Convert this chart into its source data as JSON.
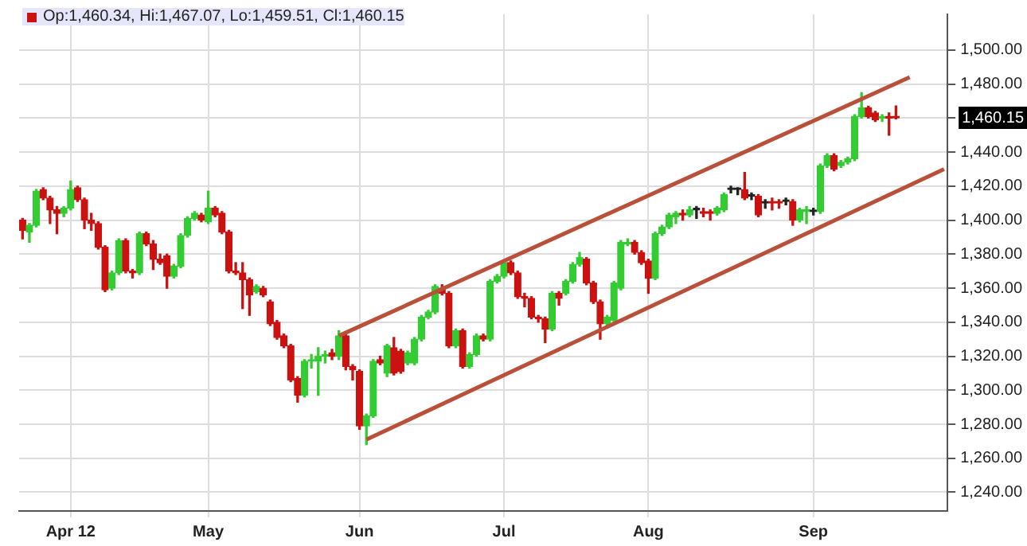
{
  "chart_data": {
    "type": "candlestick",
    "title": "Op:1,460.34, Hi:1,467.07, Lo:1,459.51, Cl:1,460.15",
    "categories": [
      null,
      null,
      null,
      null,
      null,
      null,
      null,
      "Apr 12",
      null,
      null,
      null,
      null,
      null,
      null,
      null,
      null,
      null,
      null,
      null,
      null,
      null,
      null,
      null,
      null,
      null,
      null,
      null,
      "May",
      null,
      null,
      null,
      null,
      null,
      null,
      null,
      null,
      null,
      null,
      null,
      null,
      null,
      null,
      null,
      null,
      null,
      null,
      null,
      null,
      null,
      "Jun",
      null,
      null,
      null,
      null,
      null,
      null,
      null,
      null,
      null,
      null,
      null,
      null,
      null,
      null,
      null,
      null,
      null,
      null,
      null,
      null,
      "Jul",
      null,
      null,
      null,
      null,
      null,
      null,
      null,
      null,
      null,
      null,
      null,
      null,
      null,
      null,
      null,
      null,
      null,
      null,
      null,
      null,
      "Aug",
      null,
      null,
      null,
      null,
      null,
      null,
      null,
      null,
      null,
      null,
      null,
      null,
      null,
      null,
      null,
      null,
      null,
      null,
      null,
      null,
      null,
      null,
      null,
      "Sep",
      null,
      null,
      null,
      null,
      null,
      null,
      null,
      null,
      null,
      null,
      null,
      null,
      null,
      null,
      null,
      null,
      null,
      null,
      null
    ],
    "series": [
      {
        "type": "candlestick",
        "ohlc": [
          [
            1400,
            1401,
            1389,
            1394
          ],
          [
            1393,
            1398,
            1387,
            1397
          ],
          [
            1397,
            1418,
            1396,
            1417
          ],
          [
            1418,
            1419,
            1412,
            1413
          ],
          [
            1413,
            1414,
            1398,
            1406
          ],
          [
            1406,
            1408,
            1392,
            1404
          ],
          [
            1404,
            1408,
            1402,
            1407
          ],
          [
            1407,
            1423,
            1406,
            1418
          ],
          [
            1419,
            1420,
            1411,
            1412
          ],
          [
            1412,
            1413,
            1395,
            1400
          ],
          [
            1400,
            1404,
            1394,
            1398
          ],
          [
            1398,
            1399,
            1383,
            1384
          ],
          [
            1384,
            1385,
            1358,
            1359
          ],
          [
            1360,
            1370,
            1359,
            1369
          ],
          [
            1369,
            1389,
            1368,
            1388
          ],
          [
            1388,
            1389,
            1369,
            1370
          ],
          [
            1370,
            1371,
            1366,
            1369
          ],
          [
            1369,
            1393,
            1368,
            1392
          ],
          [
            1392,
            1393,
            1385,
            1386
          ],
          [
            1386,
            1388,
            1371,
            1377
          ],
          [
            1377,
            1380,
            1374,
            1375
          ],
          [
            1379,
            1380,
            1360,
            1367
          ],
          [
            1367,
            1374,
            1366,
            1373
          ],
          [
            1373,
            1392,
            1372,
            1391
          ],
          [
            1391,
            1402,
            1390,
            1401
          ],
          [
            1401,
            1405,
            1400,
            1404
          ],
          [
            1403,
            1404,
            1399,
            1400
          ],
          [
            1399,
            1417,
            1398,
            1407
          ],
          [
            1407,
            1408,
            1402,
            1403
          ],
          [
            1404,
            1405,
            1392,
            1393
          ],
          [
            1393,
            1394,
            1369,
            1370
          ],
          [
            1370,
            1375,
            1368,
            1369
          ],
          [
            1369,
            1375,
            1348,
            1365
          ],
          [
            1365,
            1366,
            1344,
            1356
          ],
          [
            1358,
            1362,
            1357,
            1361
          ],
          [
            1360,
            1361,
            1355,
            1356
          ],
          [
            1352,
            1353,
            1338,
            1339
          ],
          [
            1340,
            1341,
            1330,
            1331
          ],
          [
            1332,
            1333,
            1325,
            1326
          ],
          [
            1326,
            1327,
            1305,
            1306
          ],
          [
            1307,
            1308,
            1293,
            1297
          ],
          [
            1297,
            1318,
            1296,
            1317
          ],
          [
            1317,
            1321,
            1313,
            1318
          ],
          [
            1317,
            1325,
            1297,
            1320
          ],
          [
            1320,
            1323,
            1316,
            1321
          ],
          [
            1322,
            1324,
            1318,
            1320
          ],
          [
            1320,
            1335,
            1318,
            1332
          ],
          [
            1332,
            1333,
            1312,
            1314
          ],
          [
            1314,
            1315,
            1306,
            1312
          ],
          [
            1311,
            1312,
            1277,
            1279
          ],
          [
            1279,
            1286,
            1268,
            1285
          ],
          [
            1285,
            1318,
            1284,
            1317
          ],
          [
            1318,
            1320,
            1315,
            1316
          ],
          [
            1310,
            1327,
            1308,
            1326
          ],
          [
            1325,
            1331,
            1309,
            1310
          ],
          [
            1323,
            1324,
            1310,
            1311
          ],
          [
            1316,
            1323,
            1315,
            1322
          ],
          [
            1316,
            1331,
            1315,
            1330
          ],
          [
            1330,
            1344,
            1329,
            1343
          ],
          [
            1343,
            1347,
            1342,
            1346
          ],
          [
            1346,
            1362,
            1345,
            1361
          ],
          [
            1360,
            1362,
            1356,
            1357
          ],
          [
            1357,
            1358,
            1325,
            1326
          ],
          [
            1326,
            1336,
            1325,
            1335
          ],
          [
            1335,
            1336,
            1313,
            1314
          ],
          [
            1314,
            1322,
            1313,
            1321
          ],
          [
            1321,
            1333,
            1320,
            1332
          ],
          [
            1332,
            1333,
            1329,
            1330
          ],
          [
            1330,
            1365,
            1329,
            1364
          ],
          [
            1364,
            1368,
            1363,
            1367
          ],
          [
            1367,
            1376,
            1366,
            1375
          ],
          [
            1375,
            1376,
            1368,
            1369
          ],
          [
            1369,
            1370,
            1354,
            1355
          ],
          [
            1355,
            1357,
            1349,
            1354
          ],
          [
            1354,
            1355,
            1342,
            1343
          ],
          [
            1343,
            1344,
            1340,
            1342
          ],
          [
            1342,
            1343,
            1328,
            1336
          ],
          [
            1336,
            1358,
            1335,
            1357
          ],
          [
            1357,
            1358,
            1350,
            1354
          ],
          [
            1357,
            1365,
            1356,
            1364
          ],
          [
            1364,
            1375,
            1363,
            1374
          ],
          [
            1374,
            1381,
            1373,
            1378
          ],
          [
            1377,
            1378,
            1362,
            1363
          ],
          [
            1363,
            1364,
            1351,
            1352
          ],
          [
            1352,
            1353,
            1330,
            1339
          ],
          [
            1339,
            1344,
            1337,
            1343
          ],
          [
            1341,
            1364,
            1340,
            1363
          ],
          [
            1360,
            1388,
            1359,
            1387
          ],
          [
            1386,
            1389,
            1385,
            1387
          ],
          [
            1387,
            1388,
            1380,
            1381
          ],
          [
            1381,
            1382,
            1374,
            1375
          ],
          [
            1376,
            1377,
            1357,
            1366
          ],
          [
            1366,
            1393,
            1365,
            1392
          ],
          [
            1392,
            1397,
            1391,
            1396
          ],
          [
            1396,
            1404,
            1395,
            1403
          ],
          [
            1402,
            1405,
            1398,
            1404
          ],
          [
            1404,
            1406,
            1400,
            1403
          ],
          [
            1403,
            1408,
            1402,
            1406
          ],
          [
            1406,
            1408,
            1401,
            1406
          ],
          [
            1405,
            1407,
            1402,
            1404
          ],
          [
            1405,
            1406,
            1400,
            1404
          ],
          [
            1404,
            1408,
            1403,
            1407
          ],
          [
            1406,
            1416,
            1405,
            1415
          ],
          [
            1418,
            1420,
            1416,
            1418
          ],
          [
            1418,
            1419,
            1415,
            1418
          ],
          [
            1418,
            1428,
            1412,
            1413
          ],
          [
            1414,
            1416,
            1412,
            1414
          ],
          [
            1414,
            1415,
            1402,
            1403
          ],
          [
            1410,
            1412,
            1407,
            1410
          ],
          [
            1411,
            1413,
            1406,
            1410
          ],
          [
            1411,
            1412,
            1407,
            1410
          ],
          [
            1411,
            1413,
            1409,
            1411
          ],
          [
            1411,
            1412,
            1397,
            1400
          ],
          [
            1400,
            1407,
            1399,
            1406
          ],
          [
            1405,
            1408,
            1398,
            1406
          ],
          [
            1405,
            1407,
            1403,
            1405
          ],
          [
            1405,
            1433,
            1404,
            1432
          ],
          [
            1432,
            1439,
            1431,
            1438
          ],
          [
            1438,
            1439,
            1429,
            1430
          ],
          [
            1432,
            1435,
            1431,
            1434
          ],
          [
            1434,
            1437,
            1433,
            1436
          ],
          [
            1436,
            1462,
            1435,
            1461
          ],
          [
            1461,
            1475,
            1460,
            1466
          ],
          [
            1466,
            1467,
            1460,
            1461
          ],
          [
            1463,
            1464,
            1458,
            1459
          ],
          [
            1460,
            1462,
            1458,
            1460
          ],
          [
            1461,
            1463,
            1450,
            1460
          ],
          [
            1460.34,
            1467.07,
            1459.51,
            1460.15
          ],
          null,
          null,
          null,
          null,
          null,
          null,
          null
        ],
        "colors": [
          "#cc1111",
          "#33cc33",
          "#33cc33",
          "#cc1111",
          "#cc1111",
          "#cc1111",
          "#33cc33",
          "#33cc33",
          "#cc1111",
          "#cc1111",
          "#cc1111",
          "#cc1111",
          "#cc1111",
          "#33cc33",
          "#33cc33",
          "#cc1111",
          "#cc1111",
          "#33cc33",
          "#cc1111",
          "#cc1111",
          "#cc1111",
          "#cc1111",
          "#33cc33",
          "#33cc33",
          "#33cc33",
          "#33cc33",
          "#cc1111",
          "#33cc33",
          "#cc1111",
          "#cc1111",
          "#cc1111",
          "#cc1111",
          "#cc1111",
          "#cc1111",
          "#33cc33",
          "#cc1111",
          "#cc1111",
          "#cc1111",
          "#cc1111",
          "#cc1111",
          "#cc1111",
          "#33cc33",
          "#33cc33",
          "#33cc33",
          "#33cc33",
          "#cc1111",
          "#33cc33",
          "#cc1111",
          "#cc1111",
          "#cc1111",
          "#33cc33",
          "#33cc33",
          "#cc1111",
          "#33cc33",
          "#cc1111",
          "#cc1111",
          "#33cc33",
          "#33cc33",
          "#33cc33",
          "#33cc33",
          "#33cc33",
          "#cc1111",
          "#cc1111",
          "#33cc33",
          "#cc1111",
          "#33cc33",
          "#33cc33",
          "#cc1111",
          "#33cc33",
          "#33cc33",
          "#33cc33",
          "#cc1111",
          "#cc1111",
          "#cc1111",
          "#cc1111",
          "#cc1111",
          "#cc1111",
          "#33cc33",
          "#cc1111",
          "#33cc33",
          "#33cc33",
          "#33cc33",
          "#cc1111",
          "#cc1111",
          "#cc1111",
          "#33cc33",
          "#33cc33",
          "#33cc33",
          "#33cc33",
          "#cc1111",
          "#cc1111",
          "#cc1111",
          "#33cc33",
          "#33cc33",
          "#33cc33",
          "#33cc33",
          "#cc1111",
          "#33cc33",
          "#222222",
          "#cc1111",
          "#cc1111",
          "#33cc33",
          "#33cc33",
          "#222222",
          "#222222",
          "#cc1111",
          "#222222",
          "#cc1111",
          "#222222",
          "#cc1111",
          "#cc1111",
          "#222222",
          "#cc1111",
          "#33cc33",
          "#33cc33",
          "#222222",
          "#33cc33",
          "#33cc33",
          "#cc1111",
          "#33cc33",
          "#33cc33",
          "#33cc33",
          "#33cc33",
          "#cc1111",
          "#cc1111",
          "#33cc33",
          "#cc1111",
          "#cc1111",
          null,
          null,
          null,
          null,
          null,
          null,
          null
        ]
      },
      {
        "type": "line",
        "color": "#b9503a",
        "values": [
          null,
          null,
          null,
          null,
          null,
          null,
          null,
          null,
          null,
          null,
          null,
          null,
          null,
          null,
          null,
          null,
          null,
          null,
          null,
          null,
          null,
          null,
          null,
          null,
          null,
          null,
          null,
          null,
          null,
          null,
          null,
          null,
          null,
          null,
          null,
          null,
          null,
          null,
          null,
          null,
          null,
          null,
          null,
          null,
          null,
          null,
          1332,
          null,
          null,
          null,
          null,
          null,
          null,
          null,
          null,
          null,
          null,
          null,
          null,
          null,
          null,
          null,
          null,
          null,
          null,
          null,
          null,
          null,
          null,
          null,
          null,
          null,
          null,
          null,
          null,
          null,
          null,
          null,
          null,
          null,
          null,
          null,
          null,
          null,
          null,
          null,
          null,
          null,
          null,
          null,
          null,
          null,
          null,
          null,
          null,
          null,
          null,
          null,
          null,
          null,
          null,
          null,
          null,
          null,
          null,
          null,
          null,
          null,
          null,
          null,
          null,
          null,
          null,
          null,
          null,
          null,
          null,
          null,
          null,
          null,
          null,
          null,
          null,
          null,
          null,
          null,
          null,
          null,
          null,
          1484,
          null,
          null,
          null,
          null,
          null
        ]
      },
      {
        "type": "line",
        "color": "#b9503a",
        "values": [
          null,
          null,
          null,
          null,
          null,
          null,
          null,
          null,
          null,
          null,
          null,
          null,
          null,
          null,
          null,
          null,
          null,
          null,
          null,
          null,
          null,
          null,
          null,
          null,
          null,
          null,
          null,
          null,
          null,
          null,
          null,
          null,
          null,
          null,
          null,
          null,
          null,
          null,
          null,
          null,
          null,
          null,
          null,
          null,
          null,
          null,
          null,
          null,
          null,
          null,
          1271,
          null,
          null,
          null,
          null,
          null,
          null,
          null,
          null,
          null,
          null,
          null,
          null,
          null,
          null,
          null,
          null,
          null,
          null,
          null,
          null,
          null,
          null,
          null,
          null,
          null,
          null,
          null,
          null,
          null,
          null,
          null,
          null,
          null,
          null,
          null,
          null,
          null,
          null,
          null,
          null,
          null,
          null,
          null,
          null,
          null,
          null,
          null,
          null,
          null,
          null,
          null,
          null,
          null,
          null,
          null,
          null,
          null,
          null,
          null,
          null,
          null,
          null,
          null,
          null,
          null,
          null,
          null,
          null,
          null,
          null,
          null,
          null,
          null,
          null,
          null,
          null,
          null,
          null,
          null,
          null,
          null,
          null,
          null,
          1430
        ]
      }
    ],
    "ylim": [
      1229,
      1521
    ],
    "yticks": [
      {
        "value": 1240,
        "label": "1,240.00"
      },
      {
        "value": 1260,
        "label": "1,260.00"
      },
      {
        "value": 1280,
        "label": "1,280.00"
      },
      {
        "value": 1300,
        "label": "1,300.00"
      },
      {
        "value": 1320,
        "label": "1,320.00"
      },
      {
        "value": 1340,
        "label": "1,340.00"
      },
      {
        "value": 1360,
        "label": "1,360.00"
      },
      {
        "value": 1380,
        "label": "1,380.00"
      },
      {
        "value": 1400,
        "label": "1,400.00"
      },
      {
        "value": 1420,
        "label": "1,420.00"
      },
      {
        "value": 1440,
        "label": "1,440.00"
      },
      {
        "value": 1460,
        "label": null
      },
      {
        "value": 1480,
        "label": "1,480.00"
      },
      {
        "value": 1500,
        "label": "1,500.00"
      }
    ],
    "annotations": [
      "1,460.15"
    ],
    "grid": true,
    "legend": false
  }
}
